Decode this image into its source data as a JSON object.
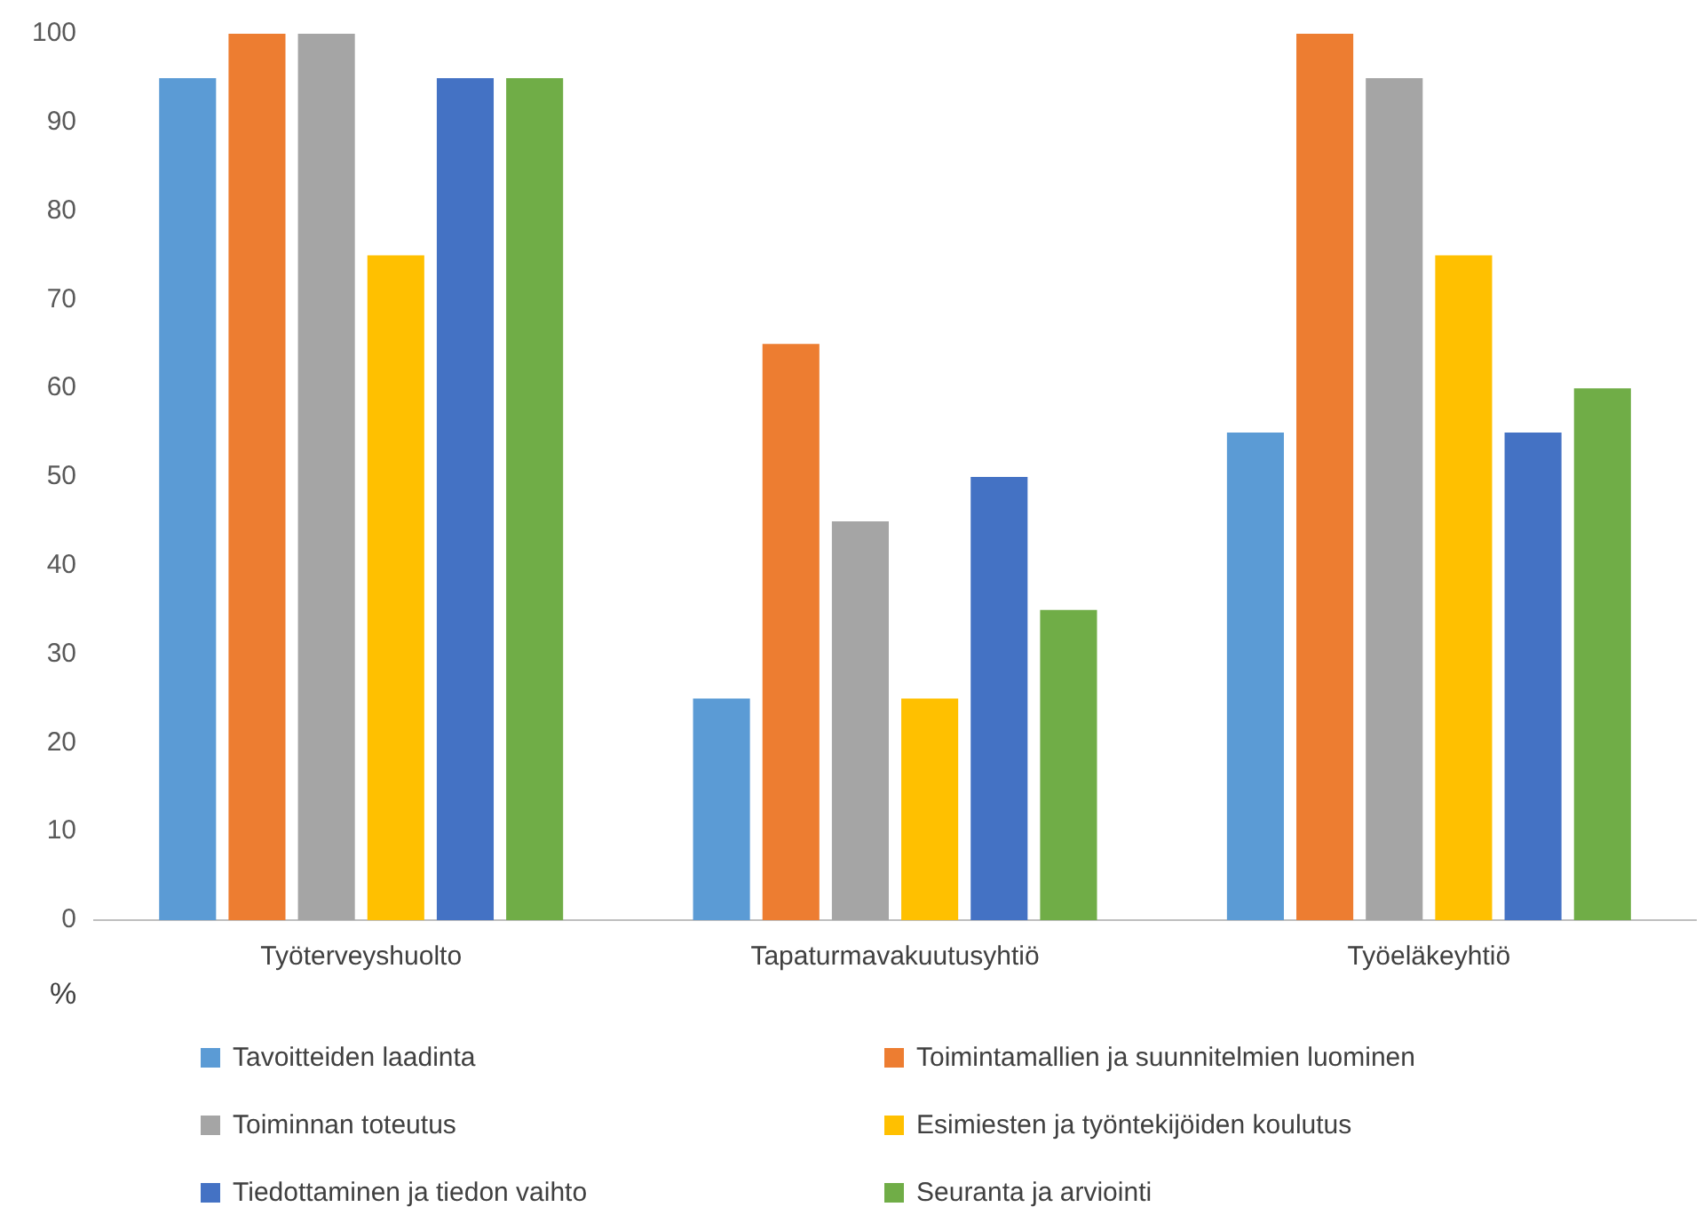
{
  "chart_data": {
    "type": "bar",
    "ylabel": "%",
    "categories": [
      "Työterveyshuolto",
      "Tapaturmavakuutusyhtiö",
      "Työeläkeyhtiö"
    ],
    "series": [
      {
        "name": "Tavoitteiden laadinta",
        "color": "#5b9bd5",
        "values": [
          95,
          25,
          55
        ]
      },
      {
        "name": "Toimintamallien ja suunnitelmien luominen",
        "color": "#ed7d31",
        "values": [
          100,
          65,
          100
        ]
      },
      {
        "name": "Toiminnan toteutus",
        "color": "#a5a5a5",
        "values": [
          100,
          45,
          95
        ]
      },
      {
        "name": "Esimiesten ja työntekijöiden koulutus",
        "color": "#ffc000",
        "values": [
          75,
          25,
          75
        ]
      },
      {
        "name": "Tiedottaminen ja tiedon vaihto",
        "color": "#4472c4",
        "values": [
          95,
          50,
          55
        ]
      },
      {
        "name": "Seuranta ja arviointi",
        "color": "#70ad47",
        "values": [
          95,
          35,
          60
        ]
      }
    ],
    "ylim": [
      0,
      100
    ],
    "yticks": [
      0,
      10,
      20,
      30,
      40,
      50,
      60,
      70,
      80,
      90,
      100
    ],
    "grid": false,
    "legend": "bottom"
  }
}
